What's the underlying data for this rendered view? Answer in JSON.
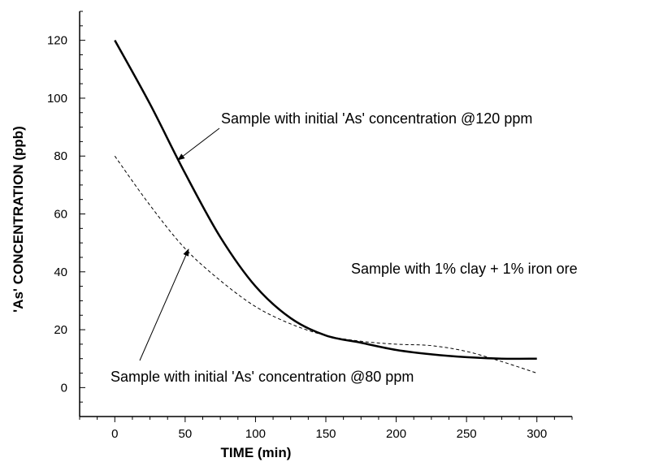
{
  "chart_data": {
    "type": "line",
    "xlabel": "TIME (min)",
    "ylabel": "'As' CONCENTRATION (ppb)",
    "xlim": [
      -25,
      325
    ],
    "ylim": [
      -10,
      130
    ],
    "x_ticks": [
      0,
      50,
      100,
      150,
      200,
      250,
      300
    ],
    "y_ticks": [
      0,
      20,
      40,
      60,
      80,
      100,
      120
    ],
    "grid": false,
    "legend": "none",
    "series": [
      {
        "style": "solid",
        "color": "#000000",
        "x": [
          0,
          25,
          50,
          75,
          100,
          125,
          150,
          175,
          200,
          225,
          250,
          275,
          300
        ],
        "y": [
          120,
          98,
          74,
          52,
          35,
          24,
          18,
          15.5,
          13,
          11.5,
          10.5,
          10,
          10
        ]
      },
      {
        "style": "dashed",
        "color": "#000000",
        "x": [
          0,
          25,
          50,
          75,
          100,
          125,
          150,
          175,
          200,
          225,
          250,
          275,
          300
        ],
        "y": [
          80,
          63,
          48,
          37,
          28,
          22,
          18,
          16,
          15,
          14.5,
          12.5,
          9,
          5
        ]
      }
    ],
    "annotations": [
      {
        "text": "Sample with initial 'As' concentration @120 ppm",
        "arrow_to": [
          45,
          78
        ]
      },
      {
        "text": "Sample with 1% clay + 1% iron ore"
      },
      {
        "text": "Sample with initial 'As' concentration @80 ppm",
        "arrow_to": [
          52,
          47
        ]
      }
    ]
  }
}
